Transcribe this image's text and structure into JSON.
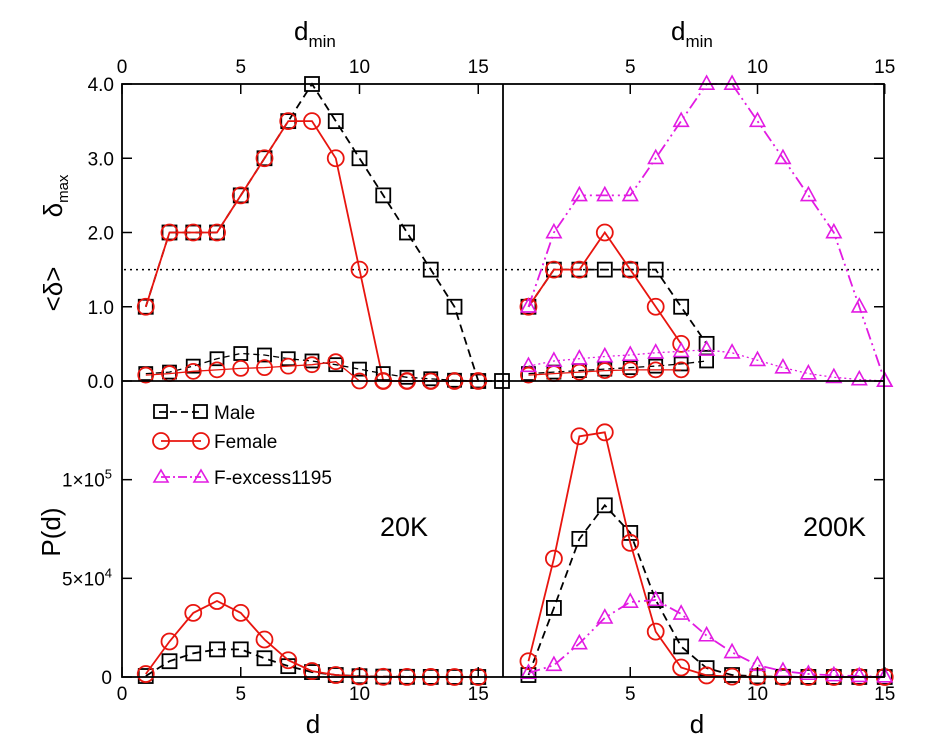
{
  "colors": {
    "male": "#000000",
    "female": "#e8150f",
    "fexcess": "#e21be2"
  },
  "legend": [
    {
      "key": "male",
      "label": "Male",
      "marker": "square"
    },
    {
      "key": "female",
      "label": "Female",
      "marker": "circle"
    },
    {
      "key": "fexcess",
      "label": "F-excess1195",
      "marker": "triangle"
    }
  ],
  "labels": {
    "dmin": "d",
    "dmin_sub": "min",
    "d": "d",
    "Pd": "P(d)",
    "delta_max": "δ",
    "delta_max_sub": "max",
    "delta_mean": "<δ>",
    "panel_20k": "20K",
    "panel_200k": "200K"
  },
  "chart_data": [
    {
      "id": "top-left",
      "type": "line",
      "xlabel": "d_min",
      "ylabel": "δ_max / <δ>",
      "xlim": [
        0,
        16
      ],
      "ylim": [
        0,
        4
      ],
      "xticks": [
        "0",
        "5",
        "10",
        "15"
      ],
      "yticks": [
        "0.0",
        "1.0",
        "2.0",
        "3.0",
        "4.0"
      ],
      "reference_line": 1.5,
      "series": [
        {
          "name": "Male",
          "metric": "δ_max",
          "x": [
            1,
            2,
            3,
            4,
            5,
            6,
            7,
            8,
            9,
            10,
            11,
            12,
            13,
            14,
            15,
            16
          ],
          "y": [
            1.0,
            2.0,
            2.0,
            2.0,
            2.5,
            3.0,
            3.5,
            4.0,
            3.5,
            3.0,
            2.5,
            2.0,
            1.5,
            1.0,
            0.0,
            0.0
          ]
        },
        {
          "name": "Female",
          "metric": "δ_max",
          "x": [
            1,
            2,
            3,
            4,
            5,
            6,
            7,
            8,
            9,
            10,
            11,
            12,
            13,
            14,
            15
          ],
          "y": [
            1.0,
            2.0,
            2.0,
            2.0,
            2.5,
            3.0,
            3.5,
            3.5,
            3.0,
            1.5,
            0.0,
            0.0,
            0.0,
            0.0,
            0.0
          ]
        },
        {
          "name": "Male",
          "metric": "<δ>",
          "x": [
            1,
            2,
            3,
            4,
            5,
            6,
            7,
            8,
            9,
            10,
            11,
            12,
            13,
            14,
            15
          ],
          "y": [
            0.1,
            0.12,
            0.2,
            0.3,
            0.37,
            0.35,
            0.3,
            0.27,
            0.22,
            0.16,
            0.1,
            0.05,
            0.03,
            0.01,
            0.0
          ]
        },
        {
          "name": "Female",
          "metric": "<δ>",
          "x": [
            1,
            2,
            3,
            4,
            5,
            6,
            7,
            8,
            9,
            10,
            11,
            12,
            13,
            14,
            15
          ],
          "y": [
            0.08,
            0.1,
            0.13,
            0.15,
            0.17,
            0.18,
            0.2,
            0.22,
            0.26,
            0.0,
            0.0,
            0.0,
            0.0,
            0.0,
            0.0
          ]
        }
      ]
    },
    {
      "id": "top-right",
      "type": "line",
      "xlabel": "d_min",
      "ylabel": "",
      "xlim": [
        0,
        15
      ],
      "ylim": [
        0,
        4
      ],
      "xticks": [
        "5",
        "10",
        "15"
      ],
      "reference_line": 1.5,
      "series": [
        {
          "name": "Male",
          "metric": "δ_max",
          "x": [
            1,
            2,
            3,
            4,
            5,
            6,
            7,
            8
          ],
          "y": [
            1.0,
            1.5,
            1.5,
            1.5,
            1.5,
            1.5,
            1.0,
            0.5
          ]
        },
        {
          "name": "Female",
          "metric": "δ_max",
          "x": [
            1,
            2,
            3,
            4,
            5,
            6,
            7
          ],
          "y": [
            1.0,
            1.5,
            1.5,
            2.0,
            1.5,
            1.0,
            0.5
          ]
        },
        {
          "name": "F-excess1195",
          "metric": "δ_max",
          "x": [
            1,
            2,
            3,
            4,
            5,
            6,
            7,
            8,
            9,
            10,
            11,
            12,
            13,
            14,
            15
          ],
          "y": [
            1.0,
            2.0,
            2.5,
            2.5,
            2.5,
            3.0,
            3.5,
            4.0,
            4.0,
            3.5,
            3.0,
            2.5,
            2.0,
            1.0,
            0.0
          ]
        },
        {
          "name": "Male",
          "metric": "<δ>",
          "x": [
            1,
            2,
            3,
            4,
            5,
            6,
            7,
            8
          ],
          "y": [
            0.1,
            0.12,
            0.14,
            0.16,
            0.18,
            0.2,
            0.23,
            0.27
          ]
        },
        {
          "name": "Female",
          "metric": "<δ>",
          "x": [
            1,
            2,
            3,
            4,
            5,
            6,
            7
          ],
          "y": [
            0.08,
            0.1,
            0.12,
            0.14,
            0.15,
            0.15,
            0.15
          ]
        },
        {
          "name": "F-excess1195",
          "metric": "<δ>",
          "x": [
            1,
            2,
            3,
            4,
            5,
            6,
            7,
            8,
            9,
            10,
            11,
            12,
            13,
            14,
            15
          ],
          "y": [
            0.2,
            0.27,
            0.3,
            0.33,
            0.35,
            0.38,
            0.4,
            0.42,
            0.38,
            0.28,
            0.18,
            0.1,
            0.05,
            0.02,
            0.0
          ]
        }
      ]
    },
    {
      "id": "bottom-left",
      "type": "line",
      "xlabel": "d",
      "ylabel": "P(d)",
      "xlim": [
        0,
        15
      ],
      "ylim": [
        0,
        150000
      ],
      "xticks": [
        "0",
        "5",
        "10",
        "15"
      ],
      "series": [
        {
          "name": "Male",
          "x": [
            1,
            2,
            3,
            4,
            5,
            6,
            7,
            8,
            9,
            10,
            11,
            12,
            13,
            14,
            15
          ],
          "y": [
            500,
            8000,
            12000,
            14000,
            14000,
            9500,
            5500,
            2500,
            1000,
            400,
            200,
            100,
            50,
            20,
            10
          ]
        },
        {
          "name": "Female",
          "x": [
            1,
            2,
            3,
            4,
            5,
            6,
            7,
            8,
            9,
            10,
            11,
            12,
            13,
            14,
            15
          ],
          "y": [
            1500,
            18000,
            32500,
            38500,
            32500,
            19000,
            8500,
            3000,
            1000,
            300,
            100,
            50,
            20,
            10,
            5
          ]
        }
      ]
    },
    {
      "id": "bottom-right",
      "type": "line",
      "xlabel": "d",
      "ylabel": "",
      "xlim": [
        0,
        15
      ],
      "ylim": [
        0,
        150000
      ],
      "xticks": [
        "5",
        "10",
        "15"
      ],
      "series": [
        {
          "name": "Male",
          "x": [
            1,
            2,
            3,
            4,
            5,
            6,
            7,
            8,
            9,
            10,
            11,
            12,
            13,
            14,
            15
          ],
          "y": [
            1000,
            35000,
            70000,
            87000,
            73000,
            39000,
            15500,
            4500,
            1000,
            300,
            100,
            50,
            20,
            10,
            5
          ]
        },
        {
          "name": "Female",
          "x": [
            1,
            2,
            3,
            4,
            5,
            6,
            7,
            8,
            9,
            10,
            11,
            12,
            13,
            14,
            15
          ],
          "y": [
            8000,
            60000,
            122000,
            124000,
            68000,
            23000,
            4800,
            800,
            200,
            100,
            50,
            20,
            10,
            5,
            0
          ]
        },
        {
          "name": "F-excess1195",
          "x": [
            1,
            2,
            3,
            4,
            5,
            6,
            7,
            8,
            9,
            10,
            11,
            12,
            13,
            14,
            15
          ],
          "y": [
            2000,
            6000,
            17000,
            30000,
            38000,
            39000,
            32000,
            21000,
            12500,
            6000,
            3000,
            1500,
            800,
            400,
            200
          ]
        }
      ]
    }
  ]
}
